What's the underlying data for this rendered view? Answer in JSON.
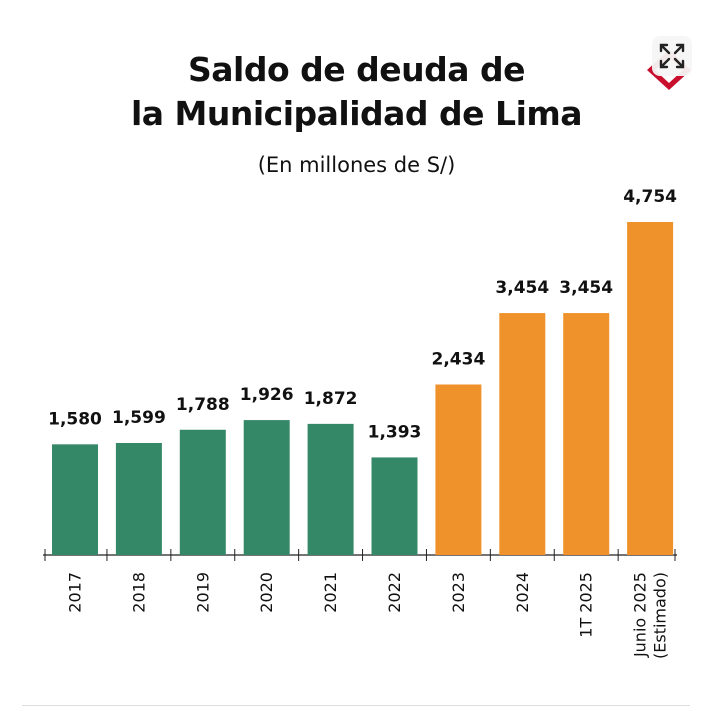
{
  "title_line1": "Saldo de deuda de",
  "title_line2": "la Municipalidad de Lima",
  "subtitle": "(En millones de S/)",
  "colors": {
    "green": "#358867",
    "orange": "#F0922C",
    "logo_red": "#C8102E"
  },
  "icons": {
    "logo": "logo-mark",
    "expand": "expand-icon"
  },
  "chart_data": {
    "type": "bar",
    "title": "Saldo de deuda de la Municipalidad de Lima",
    "subtitle": "(En millones de S/)",
    "categories": [
      "2017",
      "2018",
      "2019",
      "2020",
      "2021",
      "2022",
      "2023",
      "2024",
      "1T 2025",
      "Junio 2025 (Estimado)"
    ],
    "category_labels": [
      [
        "2017"
      ],
      [
        "2018"
      ],
      [
        "2019"
      ],
      [
        "2020"
      ],
      [
        "2021"
      ],
      [
        "2022"
      ],
      [
        "2023"
      ],
      [
        "2024"
      ],
      [
        "1T 2025"
      ],
      [
        "Junio 2025",
        "(Estimado)"
      ]
    ],
    "values": [
      1580,
      1599,
      1788,
      1926,
      1872,
      1393,
      2434,
      3454,
      3454,
      4754
    ],
    "value_labels": [
      "1,580",
      "1,599",
      "1,788",
      "1,926",
      "1,872",
      "1,393",
      "2,434",
      "3,454",
      "3,454",
      "4,754"
    ],
    "bar_colors": [
      "#358867",
      "#358867",
      "#358867",
      "#358867",
      "#358867",
      "#358867",
      "#F0922C",
      "#F0922C",
      "#F0922C",
      "#F0922C"
    ],
    "ylim": [
      0,
      4800
    ],
    "grid": false,
    "legend": "none"
  }
}
